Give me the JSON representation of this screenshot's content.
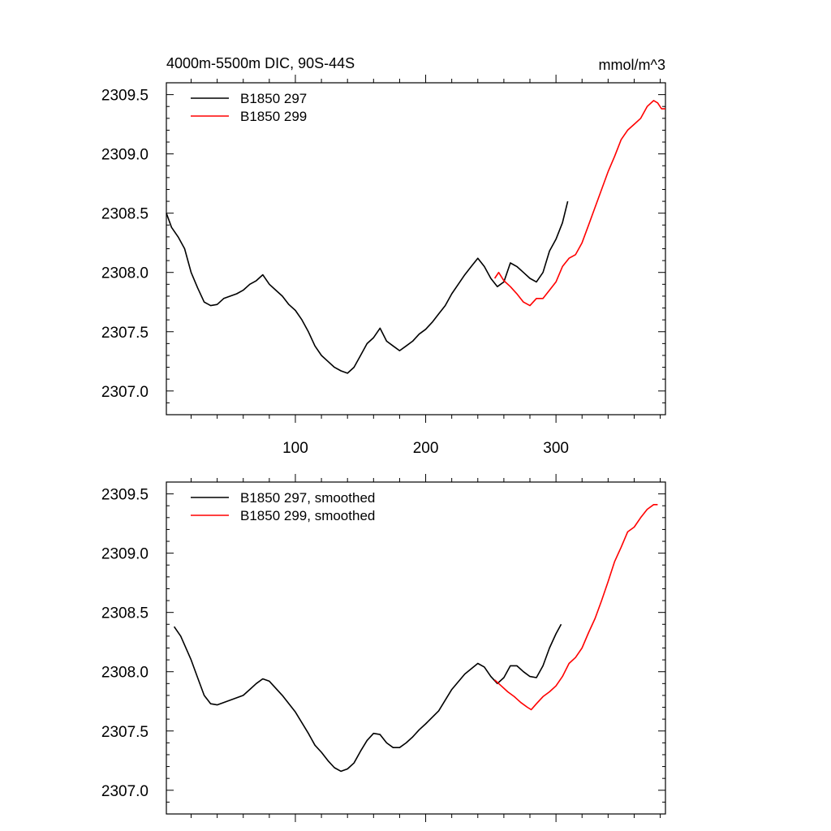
{
  "chart_data": [
    {
      "type": "line",
      "title": "4000m-5500m DIC, 90S-44S",
      "title_right": "mmol/m^3",
      "xlabel": "",
      "ylabel": "",
      "xlim": [
        1,
        384
      ],
      "ylim": [
        2306.8,
        2309.6
      ],
      "xticks": [
        100,
        200,
        300
      ],
      "xtick_labels": [
        "100",
        "200",
        "300"
      ],
      "yticks": [
        2307.0,
        2307.5,
        2308.0,
        2308.5,
        2309.0,
        2309.5
      ],
      "ytick_labels": [
        "2307.0",
        "2307.5",
        "2308.0",
        "2308.5",
        "2309.0",
        "2309.5"
      ],
      "legend_position": "top-left",
      "series": [
        {
          "name": "B1850 297",
          "color": "#000000",
          "x": [
            1,
            5,
            10,
            15,
            20,
            25,
            30,
            35,
            40,
            45,
            50,
            55,
            60,
            65,
            70,
            75,
            80,
            85,
            90,
            95,
            100,
            105,
            110,
            115,
            120,
            125,
            130,
            135,
            140,
            145,
            150,
            155,
            160,
            165,
            170,
            175,
            180,
            185,
            190,
            195,
            200,
            205,
            210,
            215,
            220,
            225,
            230,
            235,
            240,
            245,
            250,
            255,
            260,
            265,
            270,
            275,
            280,
            285,
            290,
            295,
            300,
            305,
            309
          ],
          "values": [
            2308.5,
            2308.38,
            2308.3,
            2308.2,
            2308.0,
            2307.87,
            2307.75,
            2307.72,
            2307.73,
            2307.78,
            2307.8,
            2307.82,
            2307.85,
            2307.9,
            2307.93,
            2307.98,
            2307.9,
            2307.85,
            2307.8,
            2307.73,
            2307.68,
            2307.6,
            2307.5,
            2307.38,
            2307.3,
            2307.25,
            2307.2,
            2307.17,
            2307.15,
            2307.2,
            2307.3,
            2307.4,
            2307.45,
            2307.53,
            2307.42,
            2307.38,
            2307.34,
            2307.38,
            2307.42,
            2307.48,
            2307.52,
            2307.58,
            2307.65,
            2307.72,
            2307.82,
            2307.9,
            2307.98,
            2308.05,
            2308.12,
            2308.05,
            2307.95,
            2307.88,
            2307.92,
            2308.08,
            2308.05,
            2308.0,
            2307.95,
            2307.92,
            2308.0,
            2308.18,
            2308.28,
            2308.42,
            2308.6
          ]
        },
        {
          "name": "B1850 299",
          "color": "#ff0000",
          "x": [
            253,
            256,
            260,
            265,
            270,
            275,
            280,
            285,
            290,
            295,
            300,
            305,
            310,
            315,
            320,
            325,
            330,
            335,
            340,
            345,
            350,
            355,
            360,
            365,
            370,
            375,
            378,
            381,
            384
          ],
          "values": [
            2307.95,
            2308.0,
            2307.93,
            2307.88,
            2307.82,
            2307.75,
            2307.72,
            2307.78,
            2307.78,
            2307.85,
            2307.92,
            2308.05,
            2308.12,
            2308.15,
            2308.25,
            2308.4,
            2308.55,
            2308.7,
            2308.85,
            2308.98,
            2309.12,
            2309.2,
            2309.25,
            2309.3,
            2309.4,
            2309.45,
            2309.43,
            2309.38,
            2309.38
          ]
        }
      ]
    },
    {
      "type": "line",
      "title": "",
      "xlabel": "",
      "ylabel": "",
      "xlim": [
        1,
        384
      ],
      "ylim": [
        2306.8,
        2309.6
      ],
      "xticks": [
        100,
        200,
        300
      ],
      "xtick_labels": [
        "",
        "",
        ""
      ],
      "yticks": [
        2307.0,
        2307.5,
        2308.0,
        2308.5,
        2309.0,
        2309.5
      ],
      "ytick_labels": [
        "2307.0",
        "2307.5",
        "2308.0",
        "2308.5",
        "2309.0",
        "2309.5"
      ],
      "legend_position": "top-left",
      "series": [
        {
          "name": "B1850 297, smoothed",
          "color": "#000000",
          "x": [
            7,
            12,
            20,
            25,
            30,
            35,
            40,
            50,
            60,
            65,
            70,
            75,
            80,
            85,
            90,
            100,
            110,
            115,
            120,
            125,
            130,
            135,
            140,
            145,
            150,
            155,
            160,
            165,
            170,
            175,
            180,
            185,
            190,
            195,
            200,
            210,
            220,
            230,
            240,
            245,
            250,
            255,
            260,
            265,
            270,
            275,
            280,
            285,
            290,
            295,
            300,
            304
          ],
          "values": [
            2308.38,
            2308.3,
            2308.1,
            2307.95,
            2307.8,
            2307.73,
            2307.72,
            2307.76,
            2307.8,
            2307.85,
            2307.9,
            2307.94,
            2307.92,
            2307.86,
            2307.8,
            2307.66,
            2307.48,
            2307.38,
            2307.32,
            2307.25,
            2307.19,
            2307.16,
            2307.18,
            2307.23,
            2307.33,
            2307.42,
            2307.48,
            2307.47,
            2307.4,
            2307.36,
            2307.36,
            2307.4,
            2307.45,
            2307.51,
            2307.56,
            2307.67,
            2307.85,
            2307.98,
            2308.07,
            2308.04,
            2307.96,
            2307.9,
            2307.95,
            2308.05,
            2308.05,
            2308.0,
            2307.96,
            2307.95,
            2308.05,
            2308.2,
            2308.32,
            2308.4
          ]
        },
        {
          "name": "B1850 299, smoothed",
          "color": "#ff0000",
          "x": [
            253,
            258,
            263,
            268,
            273,
            278,
            281,
            285,
            290,
            295,
            300,
            305,
            310,
            315,
            320,
            325,
            330,
            335,
            340,
            345,
            350,
            355,
            360,
            365,
            370,
            375,
            378
          ],
          "values": [
            2307.93,
            2307.88,
            2307.83,
            2307.79,
            2307.74,
            2307.7,
            2307.68,
            2307.73,
            2307.79,
            2307.83,
            2307.88,
            2307.96,
            2308.07,
            2308.12,
            2308.2,
            2308.33,
            2308.45,
            2308.6,
            2308.76,
            2308.93,
            2309.05,
            2309.18,
            2309.22,
            2309.3,
            2309.37,
            2309.41,
            2309.41
          ]
        }
      ]
    }
  ]
}
